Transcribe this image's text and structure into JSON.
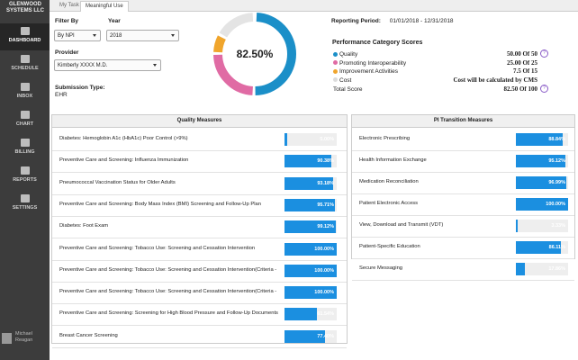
{
  "sidebar": {
    "company": "GLENWOOD SYSTEMS LLC",
    "nav": [
      "DASHBOARD",
      "SCHEDULE",
      "INBOX",
      "CHART",
      "BILLING",
      "REPORTS",
      "SETTINGS"
    ],
    "user": "Michael Reagan"
  },
  "tabs": [
    "My Task",
    "Meaningful Use"
  ],
  "filters": {
    "filter_by_label": "Filter By",
    "filter_by": "By NPI",
    "year_label": "Year",
    "year": "2018",
    "provider_label": "Provider",
    "provider": "Kimberly XXXX M.D.",
    "submission_type_label": "Submission Type:",
    "submission_type": "EHR"
  },
  "reporting_period": {
    "label": "Reporting Period:",
    "value": "01/01/2018 - 12/31/2018"
  },
  "total_percent": "82.50%",
  "scores": {
    "title": "Performance Category Scores",
    "rows": [
      {
        "name": "Quality",
        "score": "50.00 Of 50"
      },
      {
        "name": "Promoting Interoperability",
        "score": "25.00 Of 25"
      },
      {
        "name": "Improvement Activities",
        "score": "7.5 Of 15"
      },
      {
        "name": "Cost",
        "score": "Cost will be calculated by CMS"
      }
    ],
    "total": {
      "name": "Total Score",
      "score": "82.50 Of 100"
    }
  },
  "quality_measures": {
    "title": "Quality Measures",
    "rows": [
      {
        "name": "Diabetes: Hemoglobin A1c (HbA1c) Poor Control (>9%)",
        "value": 5,
        "label": "5.00%"
      },
      {
        "name": "Preventive Care and Screening: Influenza Immunization",
        "value": 90.38,
        "label": "90.38%"
      },
      {
        "name": "Pneumococcal Vaccination Status for Older Adults",
        "value": 93.18,
        "label": "93.18%"
      },
      {
        "name": "Preventive Care and Screening: Body Mass Index (BMI) Screening and Follow-Up Plan",
        "value": 95.71,
        "label": "95.71%"
      },
      {
        "name": "Diabetes: Foot Exam",
        "value": 99.12,
        "label": "99.12%"
      },
      {
        "name": "Preventive Care and Screening: Tobacco Use: Screening and Cessation Intervention",
        "value": 100,
        "label": "100.00%"
      },
      {
        "name": "Preventive Care and Screening: Tobacco Use: Screening and Cessation Intervention(Criteria -",
        "value": 100,
        "label": "100.00%"
      },
      {
        "name": "Preventive Care and Screening: Tobacco Use: Screening and Cessation Intervention(Criteria -",
        "value": 100,
        "label": "100.00%"
      },
      {
        "name": "Preventive Care and Screening: Screening for High Blood Pressure and Follow-Up Documents",
        "value": 61.54,
        "label": "61.54%"
      },
      {
        "name": "Breast Cancer Screening",
        "value": 77.4,
        "label": "77.40%"
      }
    ]
  },
  "pi_measures": {
    "title": "PI Transition Measures",
    "rows": [
      {
        "name": "Electronic Prescribing",
        "value": 88.84,
        "label": "88.84%"
      },
      {
        "name": "Health Information Exchange",
        "value": 95.12,
        "label": "95.12%"
      },
      {
        "name": "Medication Reconciliation",
        "value": 96.99,
        "label": "96.99%"
      },
      {
        "name": "Patient Electronic Access",
        "value": 100,
        "label": "100.00%"
      },
      {
        "name": "View, Download and Transmit (VDT)",
        "value": 3.33,
        "label": "3.33%"
      },
      {
        "name": "Patient-Specific Education",
        "value": 86.11,
        "label": "86.11%"
      },
      {
        "name": "Secure Messaging",
        "value": 17.86,
        "label": "17.86%"
      }
    ]
  }
}
